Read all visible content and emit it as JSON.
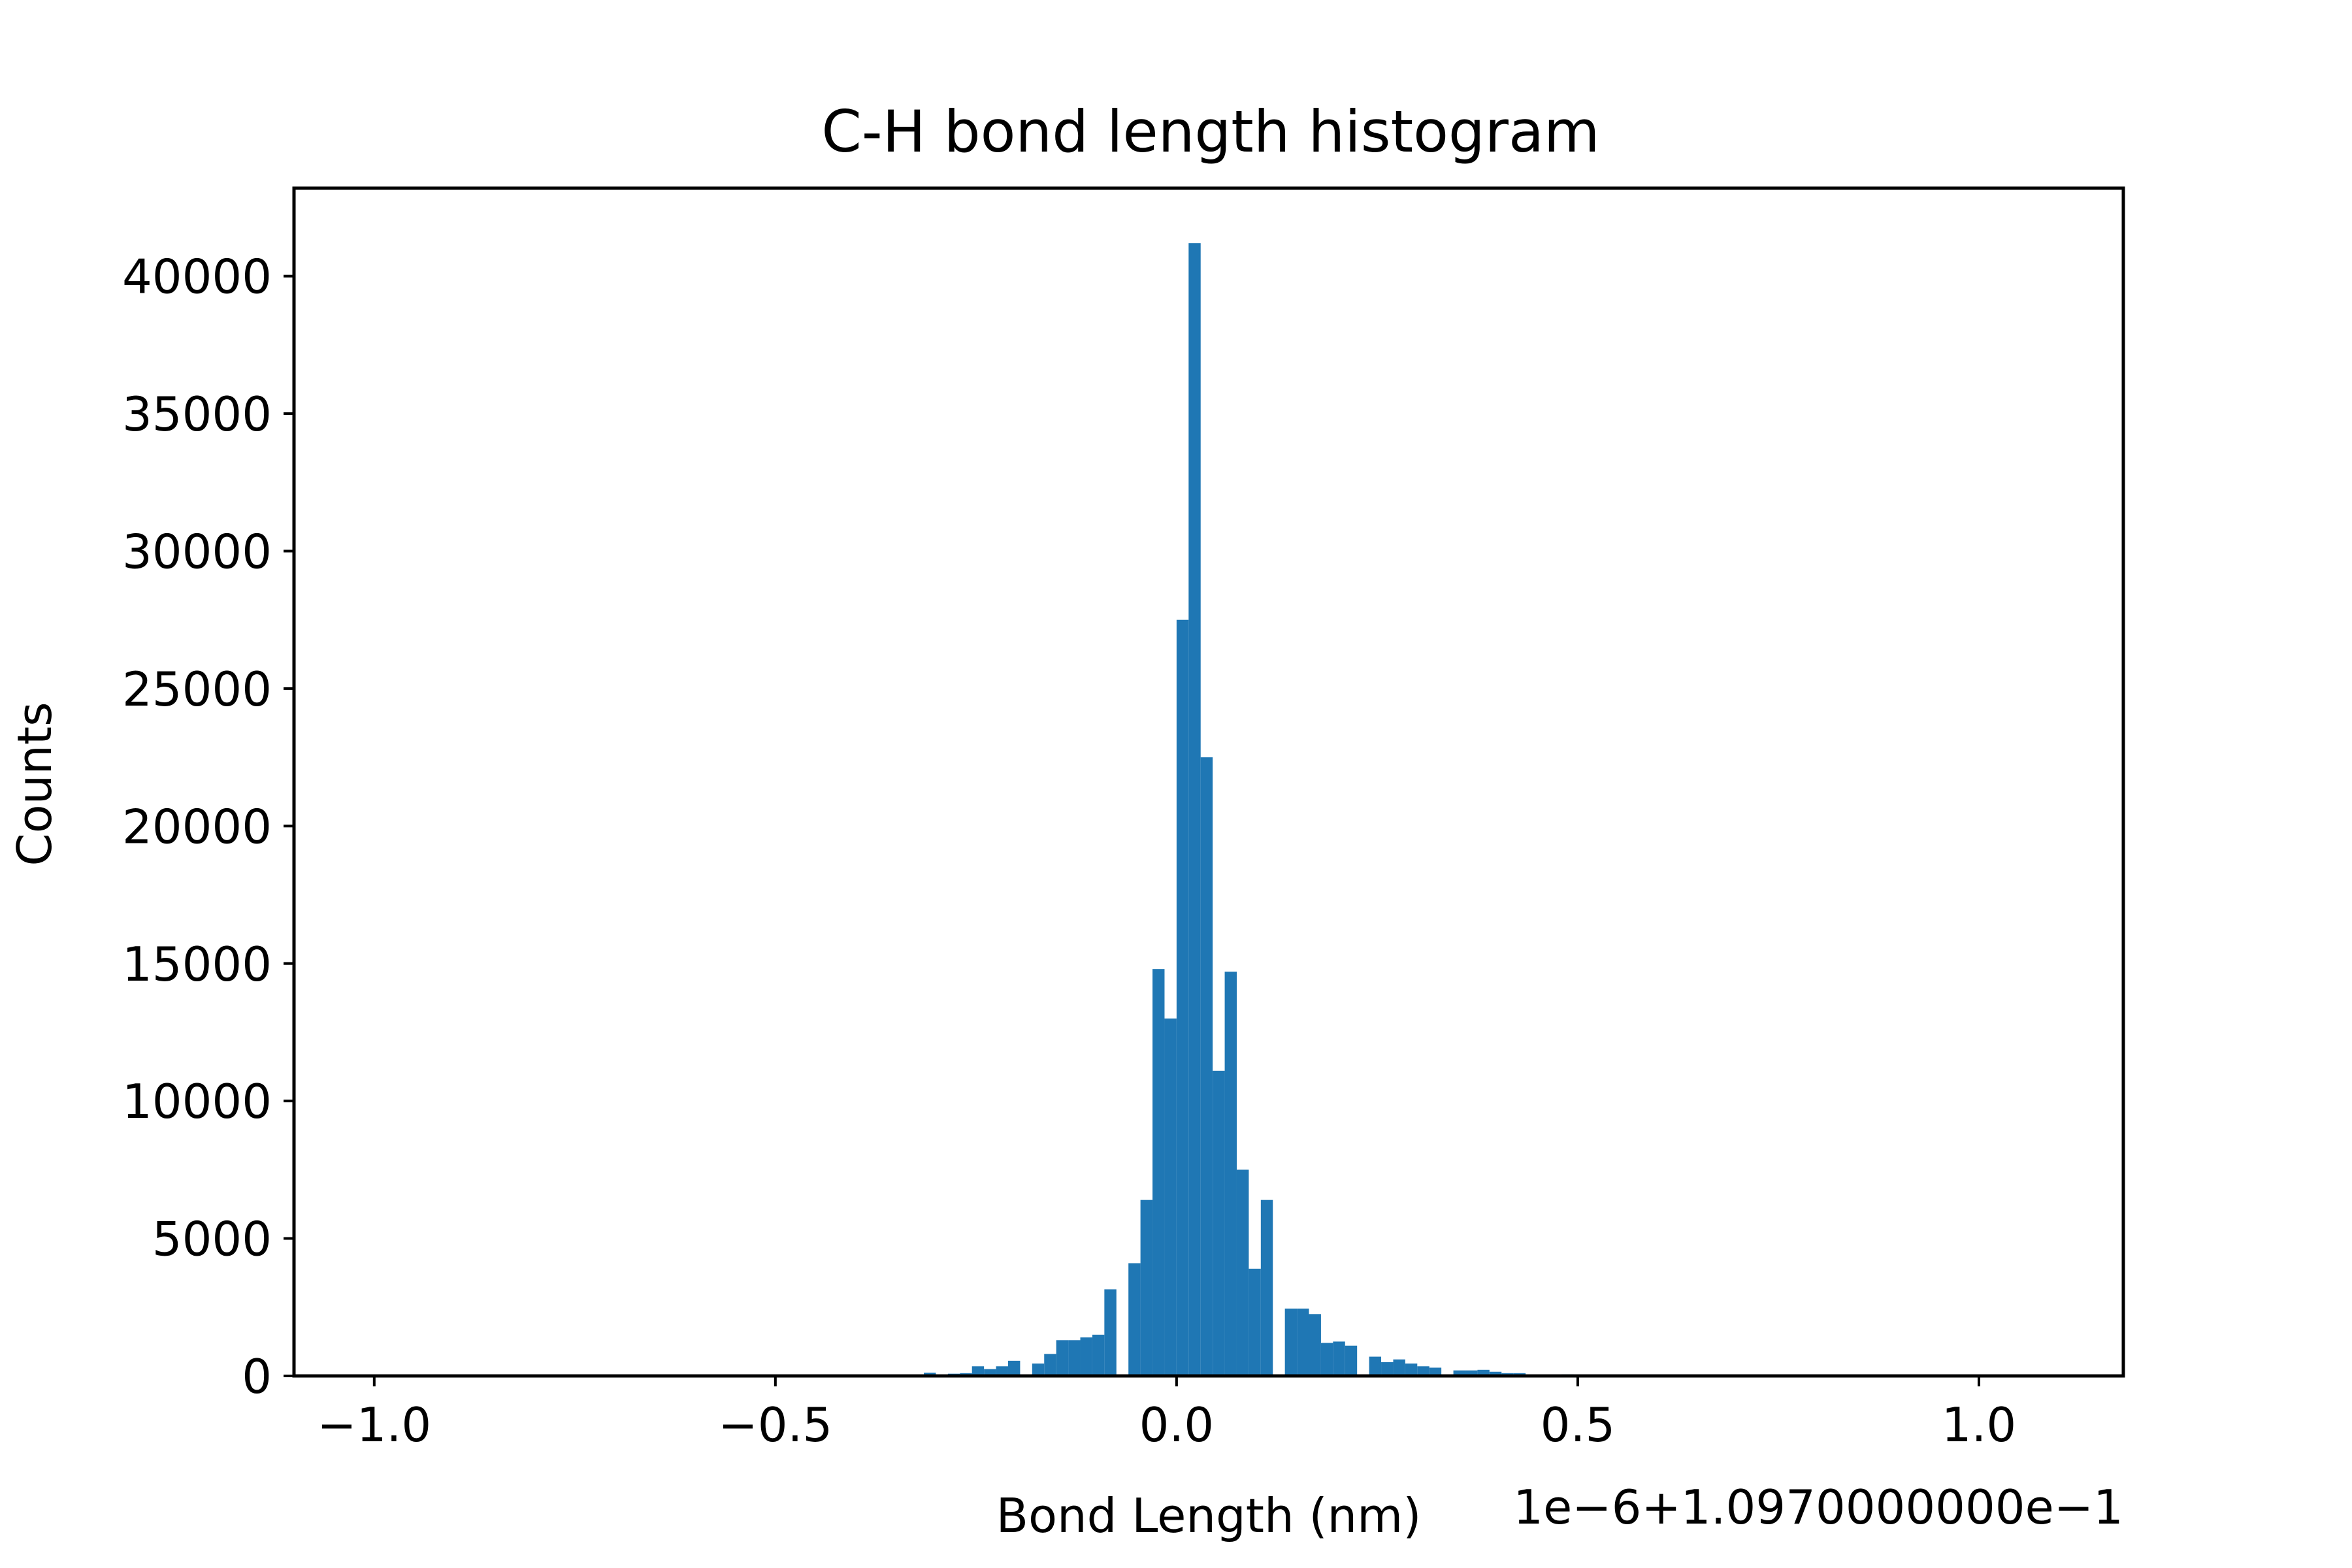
{
  "chart_data": {
    "type": "bar",
    "title": "C-H bond length histogram",
    "xlabel": "Bond Length (nm)",
    "ylabel": "Counts",
    "x_offset_text": "1e−6+1.0970000000e−1",
    "xlim": [
      -1.1,
      1.18
    ],
    "ylim": [
      0,
      43200
    ],
    "xticks": [
      -1.0,
      -0.5,
      0.0,
      0.5,
      1.0
    ],
    "xtick_labels": [
      "−1.0",
      "−0.5",
      "0.0",
      "0.5",
      "1.0"
    ],
    "yticks": [
      0,
      5000,
      10000,
      15000,
      20000,
      25000,
      30000,
      35000,
      40000
    ],
    "ytick_labels": [
      "0",
      "5000",
      "10000",
      "15000",
      "20000",
      "25000",
      "30000",
      "35000",
      "40000"
    ],
    "bin_width": 0.015,
    "grid": false,
    "bar_color": "#1f77b4",
    "bins": [
      {
        "x": -0.315,
        "count": 120
      },
      {
        "x": -0.285,
        "count": 80
      },
      {
        "x": -0.27,
        "count": 100
      },
      {
        "x": -0.255,
        "count": 350
      },
      {
        "x": -0.24,
        "count": 250
      },
      {
        "x": -0.225,
        "count": 350
      },
      {
        "x": -0.21,
        "count": 550
      },
      {
        "x": -0.18,
        "count": 450
      },
      {
        "x": -0.165,
        "count": 800
      },
      {
        "x": -0.15,
        "count": 1300
      },
      {
        "x": -0.135,
        "count": 1300
      },
      {
        "x": -0.12,
        "count": 1400
      },
      {
        "x": -0.105,
        "count": 1500
      },
      {
        "x": -0.09,
        "count": 3150
      },
      {
        "x": -0.06,
        "count": 4100
      },
      {
        "x": -0.045,
        "count": 6400
      },
      {
        "x": -0.03,
        "count": 14800
      },
      {
        "x": -0.015,
        "count": 13000
      },
      {
        "x": 0.0,
        "count": 27500
      },
      {
        "x": 0.015,
        "count": 41200
      },
      {
        "x": 0.03,
        "count": 22500
      },
      {
        "x": 0.045,
        "count": 11100
      },
      {
        "x": 0.06,
        "count": 14700
      },
      {
        "x": 0.075,
        "count": 7500
      },
      {
        "x": 0.09,
        "count": 3900
      },
      {
        "x": 0.105,
        "count": 6400
      },
      {
        "x": 0.135,
        "count": 2450
      },
      {
        "x": 0.15,
        "count": 2450
      },
      {
        "x": 0.165,
        "count": 2250
      },
      {
        "x": 0.18,
        "count": 1200
      },
      {
        "x": 0.195,
        "count": 1250
      },
      {
        "x": 0.21,
        "count": 1100
      },
      {
        "x": 0.24,
        "count": 700
      },
      {
        "x": 0.255,
        "count": 500
      },
      {
        "x": 0.27,
        "count": 600
      },
      {
        "x": 0.285,
        "count": 450
      },
      {
        "x": 0.3,
        "count": 350
      },
      {
        "x": 0.315,
        "count": 300
      },
      {
        "x": 0.345,
        "count": 200
      },
      {
        "x": 0.36,
        "count": 200
      },
      {
        "x": 0.375,
        "count": 220
      },
      {
        "x": 0.39,
        "count": 150
      },
      {
        "x": 0.405,
        "count": 100
      },
      {
        "x": 0.42,
        "count": 100
      },
      {
        "x": 0.45,
        "count": 50
      },
      {
        "x": 0.48,
        "count": 60
      },
      {
        "x": 0.495,
        "count": 40
      }
    ]
  }
}
